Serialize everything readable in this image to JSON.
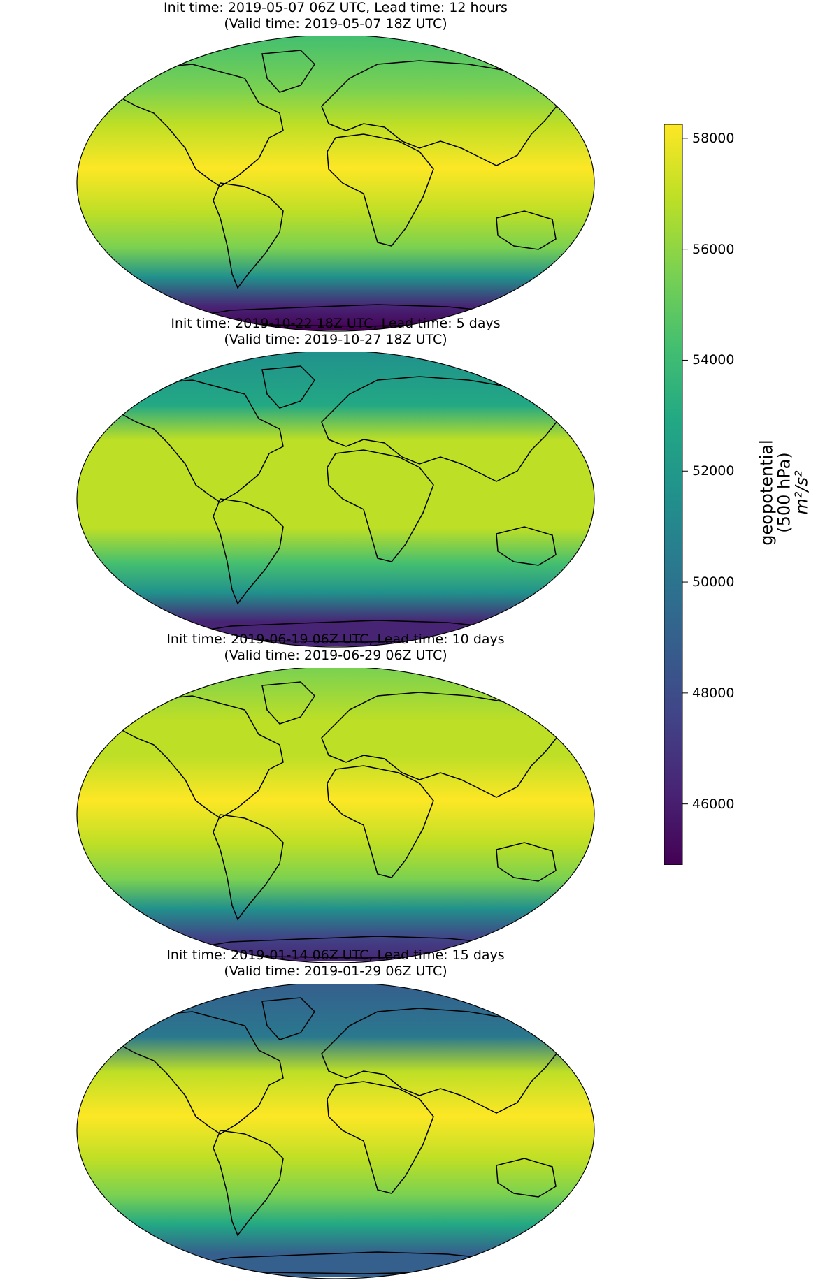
{
  "panels": [
    {
      "title_line1": "Init time: 2019-05-07 06Z UTC, Lead time: 12 hours",
      "title_line2": "(Valid time: 2019-05-07 18Z UTC)",
      "high_level": 0.95,
      "low_level": 0.0,
      "arctic_level": 0.7
    },
    {
      "title_line1": "Init time: 2019-10-22 18Z UTC, Lead time: 5 days",
      "title_line2": "(Valid time: 2019-10-27 18Z UTC)",
      "high_level": 0.93,
      "low_level": 0.05,
      "arctic_level": 0.5
    },
    {
      "title_line1": "Init time: 2019-06-19 06Z UTC, Lead time: 10 days",
      "title_line2": "(Valid time: 2019-06-29 06Z UTC)",
      "high_level": 0.97,
      "low_level": 0.12,
      "arctic_level": 0.75
    },
    {
      "title_line1": "Init time: 2019-01-14 06Z UTC, Lead time: 15 days",
      "title_line2": "(Valid time: 2019-01-29 06Z UTC)",
      "high_level": 0.97,
      "low_level": 0.25,
      "arctic_level": 0.25
    }
  ],
  "colorbar": {
    "label_line1": "geopotential",
    "label_line2": "(500 hPa)",
    "label_units": "m²/s²",
    "min": 44900,
    "max": 58250,
    "ticks": [
      "58000",
      "56000",
      "54000",
      "52000",
      "50000",
      "48000",
      "46000"
    ],
    "colormap": "viridis"
  }
}
